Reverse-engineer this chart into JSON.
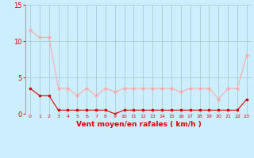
{
  "x": [
    0,
    1,
    2,
    3,
    4,
    5,
    6,
    7,
    8,
    9,
    10,
    11,
    12,
    13,
    14,
    15,
    16,
    17,
    18,
    19,
    20,
    21,
    22,
    23
  ],
  "rafales": [
    11.5,
    10.5,
    10.5,
    3.5,
    3.5,
    2.5,
    3.5,
    2.5,
    3.5,
    3.0,
    3.5,
    3.5,
    3.5,
    3.5,
    3.5,
    3.5,
    3.0,
    3.5,
    3.5,
    3.5,
    2.0,
    3.5,
    3.5,
    8.0
  ],
  "vent_moyen": [
    3.5,
    2.5,
    2.5,
    0.5,
    0.5,
    0.5,
    0.5,
    0.5,
    0.5,
    0.0,
    0.5,
    0.5,
    0.5,
    0.5,
    0.5,
    0.5,
    0.5,
    0.5,
    0.5,
    0.5,
    0.5,
    0.5,
    0.5,
    2.0
  ],
  "color_rafales": "#ffaaaa",
  "color_vent": "#dd0000",
  "background_color": "#cceeff",
  "grid_color": "#aacccc",
  "xlabel": "Vent moyen/en rafales ( km/h )",
  "xlabel_color": "#dd0000",
  "tick_color": "#dd0000",
  "ylim": [
    0,
    15
  ],
  "yticks": [
    0,
    5,
    10,
    15
  ],
  "xlim": [
    -0.5,
    23.5
  ]
}
